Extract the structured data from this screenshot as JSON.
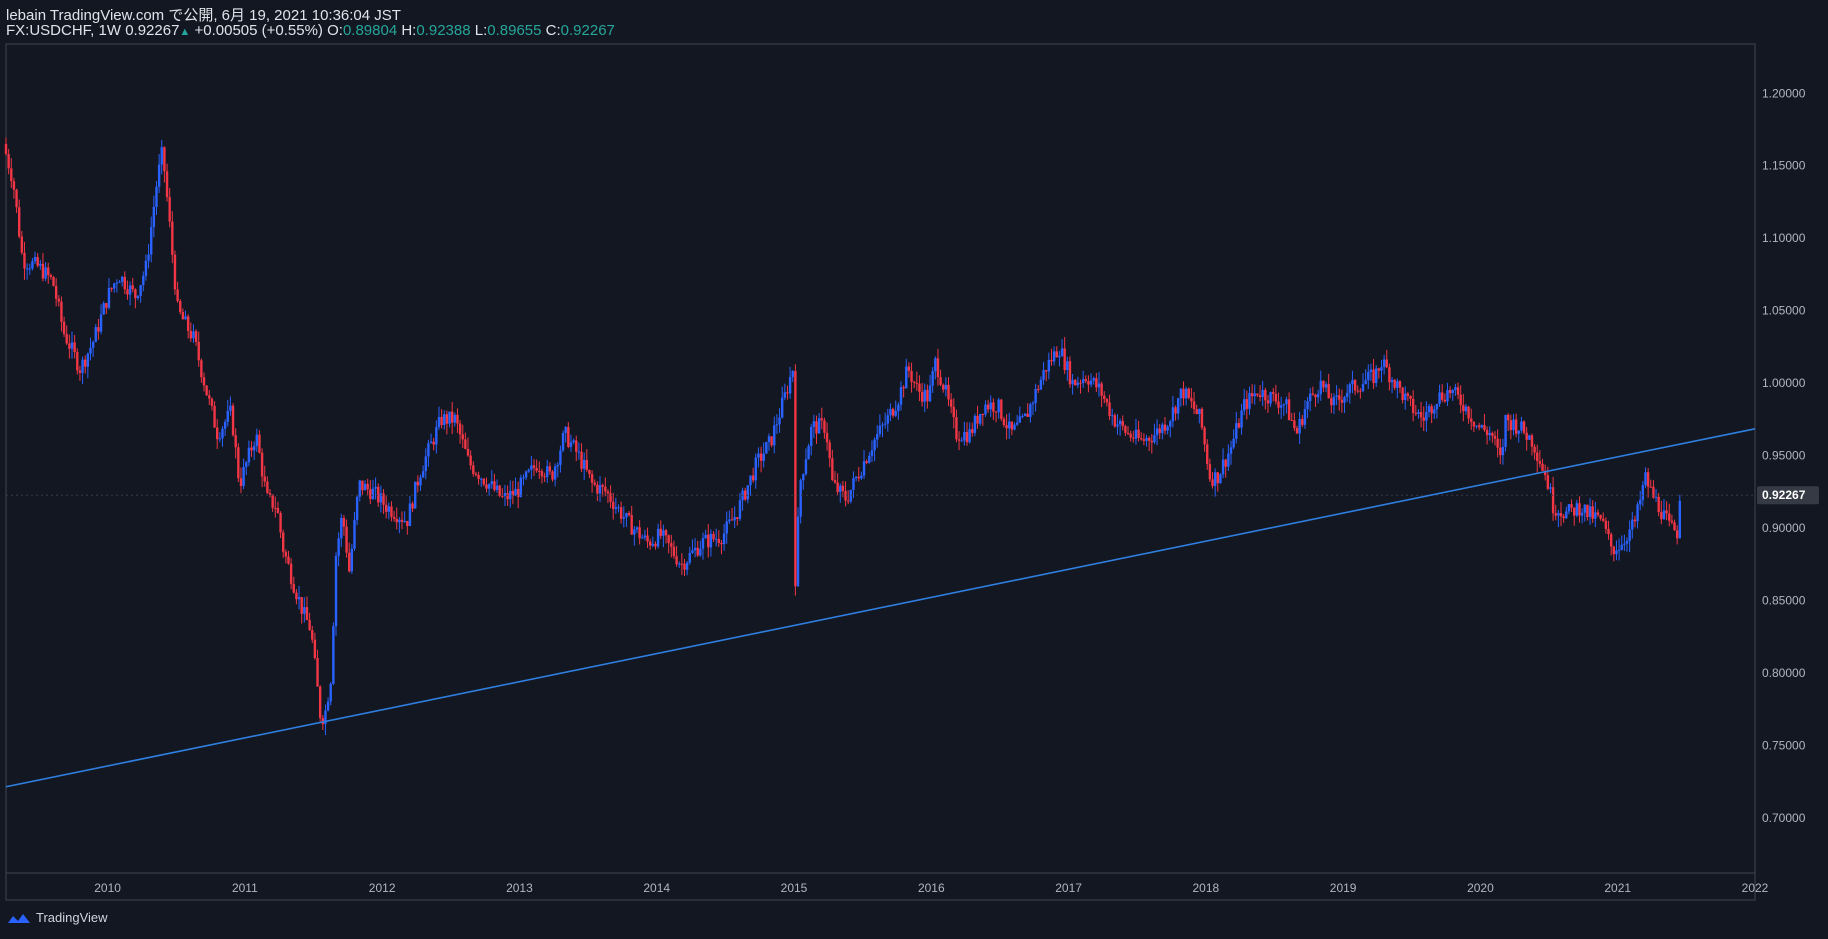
{
  "header": {
    "published_line": "lebain TradingView.com で公開, 6月 19, 2021 10:36:04 JST",
    "symbol": "FX:USDCHF, 1W",
    "last_price": "0.92267",
    "change": "+0.00505 (+0.55%)",
    "open_label": "O:",
    "open_value": "0.89804",
    "high_label": "H:",
    "high_value": "0.92388",
    "low_label": "L:",
    "low_value": "0.89655",
    "close_label": "C:",
    "close_value": "0.92267"
  },
  "footer": {
    "brand": "TradingView"
  },
  "colors": {
    "background": "#131722",
    "up": "#2962ff",
    "down": "#f23645",
    "trendline": "#2f7fe0",
    "header_value": "#26a69a"
  },
  "chart_data": {
    "type": "candlestick",
    "symbol": "FX:USDCHF",
    "interval": "1W",
    "x_ticks": [
      "2010",
      "2011",
      "2012",
      "2013",
      "2014",
      "2015",
      "2016",
      "2017",
      "2018",
      "2019",
      "2020",
      "2021",
      "2022"
    ],
    "x_range": [
      2009.26,
      2022.0
    ],
    "y_ticks": [
      "0.70000",
      "0.75000",
      "0.80000",
      "0.85000",
      "0.90000",
      "0.95000",
      "1.00000",
      "1.05000",
      "1.10000",
      "1.15000",
      "1.20000"
    ],
    "ylim": [
      0.662,
      1.234
    ],
    "last_price_label": "0.92267",
    "last_price": 0.92267,
    "price_anchors": [
      [
        2009.26,
        1.165
      ],
      [
        2009.33,
        1.14
      ],
      [
        2009.4,
        1.085
      ],
      [
        2009.52,
        1.08
      ],
      [
        2009.62,
        1.07
      ],
      [
        2009.7,
        1.035
      ],
      [
        2009.82,
        1.01
      ],
      [
        2009.92,
        1.03
      ],
      [
        2010.02,
        1.06
      ],
      [
        2010.1,
        1.075
      ],
      [
        2010.22,
        1.06
      ],
      [
        2010.3,
        1.08
      ],
      [
        2010.38,
        1.14
      ],
      [
        2010.42,
        1.16
      ],
      [
        2010.47,
        1.11
      ],
      [
        2010.53,
        1.05
      ],
      [
        2010.65,
        1.03
      ],
      [
        2010.75,
        0.99
      ],
      [
        2010.82,
        0.965
      ],
      [
        2010.92,
        0.98
      ],
      [
        2010.98,
        0.93
      ],
      [
        2011.1,
        0.965
      ],
      [
        2011.18,
        0.92
      ],
      [
        2011.25,
        0.915
      ],
      [
        2011.3,
        0.885
      ],
      [
        2011.38,
        0.86
      ],
      [
        2011.45,
        0.84
      ],
      [
        2011.5,
        0.83
      ],
      [
        2011.57,
        0.77
      ],
      [
        2011.6,
        0.77
      ],
      [
        2011.65,
        0.8
      ],
      [
        2011.68,
        0.88
      ],
      [
        2011.73,
        0.91
      ],
      [
        2011.78,
        0.87
      ],
      [
        2011.85,
        0.93
      ],
      [
        2011.95,
        0.925
      ],
      [
        2012.05,
        0.915
      ],
      [
        2012.2,
        0.905
      ],
      [
        2012.3,
        0.94
      ],
      [
        2012.45,
        0.975
      ],
      [
        2012.55,
        0.975
      ],
      [
        2012.65,
        0.945
      ],
      [
        2012.75,
        0.935
      ],
      [
        2012.9,
        0.92
      ],
      [
        2013.0,
        0.925
      ],
      [
        2013.15,
        0.945
      ],
      [
        2013.25,
        0.935
      ],
      [
        2013.35,
        0.965
      ],
      [
        2013.45,
        0.95
      ],
      [
        2013.55,
        0.93
      ],
      [
        2013.65,
        0.925
      ],
      [
        2013.8,
        0.905
      ],
      [
        2013.95,
        0.89
      ],
      [
        2014.05,
        0.895
      ],
      [
        2014.2,
        0.875
      ],
      [
        2014.35,
        0.89
      ],
      [
        2014.5,
        0.895
      ],
      [
        2014.6,
        0.91
      ],
      [
        2014.75,
        0.945
      ],
      [
        2014.85,
        0.96
      ],
      [
        2014.95,
        0.99
      ],
      [
        2015.01,
        1.01
      ],
      [
        2015.03,
        0.86
      ],
      [
        2015.06,
        0.93
      ],
      [
        2015.15,
        0.97
      ],
      [
        2015.25,
        0.97
      ],
      [
        2015.3,
        0.93
      ],
      [
        2015.4,
        0.92
      ],
      [
        2015.5,
        0.94
      ],
      [
        2015.6,
        0.96
      ],
      [
        2015.7,
        0.975
      ],
      [
        2015.78,
        0.99
      ],
      [
        2015.85,
        1.01
      ],
      [
        2015.92,
        0.995
      ],
      [
        2016.0,
        0.99
      ],
      [
        2016.05,
        1.015
      ],
      [
        2016.12,
        0.995
      ],
      [
        2016.2,
        0.965
      ],
      [
        2016.3,
        0.965
      ],
      [
        2016.4,
        0.985
      ],
      [
        2016.5,
        0.985
      ],
      [
        2016.6,
        0.965
      ],
      [
        2016.7,
        0.975
      ],
      [
        2016.85,
        1.01
      ],
      [
        2016.95,
        1.025
      ],
      [
        2017.05,
        1.0
      ],
      [
        2017.15,
        1.005
      ],
      [
        2017.25,
        0.995
      ],
      [
        2017.35,
        0.975
      ],
      [
        2017.45,
        0.965
      ],
      [
        2017.55,
        0.96
      ],
      [
        2017.65,
        0.965
      ],
      [
        2017.75,
        0.975
      ],
      [
        2017.85,
        0.995
      ],
      [
        2017.98,
        0.975
      ],
      [
        2018.05,
        0.935
      ],
      [
        2018.1,
        0.935
      ],
      [
        2018.2,
        0.955
      ],
      [
        2018.3,
        0.985
      ],
      [
        2018.4,
        0.995
      ],
      [
        2018.5,
        0.99
      ],
      [
        2018.6,
        0.985
      ],
      [
        2018.68,
        0.965
      ],
      [
        2018.75,
        0.985
      ],
      [
        2018.85,
        1.0
      ],
      [
        2018.95,
        0.985
      ],
      [
        2019.05,
        0.995
      ],
      [
        2019.15,
        1.0
      ],
      [
        2019.25,
        1.005
      ],
      [
        2019.3,
        1.015
      ],
      [
        2019.4,
        1.0
      ],
      [
        2019.5,
        0.985
      ],
      [
        2019.6,
        0.975
      ],
      [
        2019.7,
        0.99
      ],
      [
        2019.8,
        0.995
      ],
      [
        2019.9,
        0.985
      ],
      [
        2020.0,
        0.97
      ],
      [
        2020.1,
        0.965
      ],
      [
        2020.17,
        0.945
      ],
      [
        2020.2,
        0.975
      ],
      [
        2020.3,
        0.97
      ],
      [
        2020.4,
        0.96
      ],
      [
        2020.5,
        0.935
      ],
      [
        2020.55,
        0.915
      ],
      [
        2020.65,
        0.91
      ],
      [
        2020.75,
        0.915
      ],
      [
        2020.8,
        0.91
      ],
      [
        2020.9,
        0.905
      ],
      [
        2020.98,
        0.885
      ],
      [
        2021.05,
        0.89
      ],
      [
        2021.15,
        0.905
      ],
      [
        2021.22,
        0.935
      ],
      [
        2021.26,
        0.925
      ],
      [
        2021.32,
        0.915
      ],
      [
        2021.4,
        0.9
      ],
      [
        2021.46,
        0.897
      ],
      [
        2021.47,
        0.9227
      ]
    ],
    "trendline": {
      "from": [
        2009.26,
        0.7215
      ],
      "to": [
        2022.0,
        0.9685
      ]
    }
  }
}
